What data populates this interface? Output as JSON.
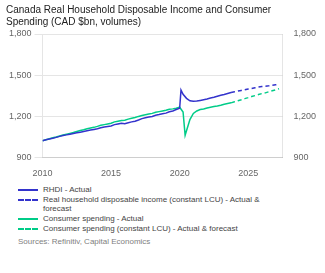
{
  "chart_data": {
    "type": "line",
    "title": "Canada Real Household Disposable Income and Consumer\nSpending (CAD $bn, volumes)",
    "annotations": [
      "Sources: Refinitiv, Capital Economics"
    ],
    "xlim": [
      2010,
      2027.5
    ],
    "xticks": [
      2010,
      2015,
      2020,
      2025
    ],
    "ylim": [
      900,
      1800
    ],
    "yticks": [
      900,
      {
        "value": 1200,
        "label": "1,200"
      },
      {
        "value": 1500,
        "label": "1,500"
      },
      {
        "value": 1800,
        "label": "1,800"
      }
    ],
    "y2lim": [
      900,
      1800
    ],
    "y2ticks": [
      900,
      {
        "value": 1200,
        "label": "1,200"
      },
      {
        "value": 1500,
        "label": "1,500"
      },
      {
        "value": 1800,
        "label": "1,800"
      }
    ],
    "grid": "y",
    "legend": "bottom",
    "series": [
      {
        "name": "RHDI - Actual",
        "color": "#3333cc",
        "line_style": "solid",
        "x": [
          2010.0,
          2010.25,
          2010.5,
          2010.75,
          2011.0,
          2011.25,
          2011.5,
          2011.75,
          2012.0,
          2012.25,
          2012.5,
          2012.75,
          2013.0,
          2013.25,
          2013.5,
          2013.75,
          2014.0,
          2014.25,
          2014.5,
          2014.75,
          2015.0,
          2015.25,
          2015.5,
          2015.75,
          2016.0,
          2016.25,
          2016.5,
          2016.75,
          2017.0,
          2017.25,
          2017.5,
          2017.75,
          2018.0,
          2018.25,
          2018.5,
          2018.75,
          2019.0,
          2019.25,
          2019.5,
          2019.75,
          2020.0,
          2020.1,
          2020.25,
          2020.5,
          2020.75,
          2021.0,
          2021.25,
          2021.5,
          2021.75,
          2022.0,
          2022.25,
          2022.5,
          2022.75,
          2023.0,
          2023.25,
          2023.5,
          2023.75
        ],
        "values": [
          1020,
          1028,
          1033,
          1038,
          1045,
          1052,
          1058,
          1063,
          1068,
          1073,
          1078,
          1083,
          1088,
          1093,
          1098,
          1103,
          1108,
          1115,
          1120,
          1125,
          1128,
          1138,
          1143,
          1148,
          1145,
          1152,
          1158,
          1163,
          1172,
          1182,
          1188,
          1193,
          1198,
          1207,
          1212,
          1218,
          1222,
          1232,
          1238,
          1248,
          1258,
          1390,
          1360,
          1330,
          1312,
          1308,
          1310,
          1315,
          1320,
          1325,
          1332,
          1338,
          1345,
          1352,
          1358,
          1365,
          1372
        ]
      },
      {
        "name": "Real household disposable income (constant LCU) - Actual &\nforecast",
        "color": "#3333cc",
        "line_style": "dashed",
        "x": [
          2023.75,
          2024.0,
          2024.25,
          2024.5,
          2024.75,
          2025.0,
          2025.25,
          2025.5,
          2025.75,
          2026.0,
          2026.25,
          2026.5,
          2026.75,
          2027.0,
          2027.25
        ],
        "values": [
          1372,
          1378,
          1383,
          1388,
          1393,
          1398,
          1402,
          1407,
          1412,
          1416,
          1419,
          1422,
          1426,
          1429,
          1432
        ]
      },
      {
        "name": "Consumer spending - Actual",
        "color": "#00cc88",
        "line_style": "solid",
        "x": [
          2010.0,
          2010.25,
          2010.5,
          2010.75,
          2011.0,
          2011.25,
          2011.5,
          2011.75,
          2012.0,
          2012.25,
          2012.5,
          2012.75,
          2013.0,
          2013.25,
          2013.5,
          2013.75,
          2014.0,
          2014.25,
          2014.5,
          2014.75,
          2015.0,
          2015.25,
          2015.5,
          2015.75,
          2016.0,
          2016.25,
          2016.5,
          2016.75,
          2017.0,
          2017.25,
          2017.5,
          2017.75,
          2018.0,
          2018.25,
          2018.5,
          2018.75,
          2019.0,
          2019.25,
          2019.5,
          2019.75,
          2020.0,
          2020.25,
          2020.4,
          2020.75,
          2021.0,
          2021.25,
          2021.5,
          2021.75,
          2022.0,
          2022.25,
          2022.5,
          2022.75,
          2023.0,
          2023.25,
          2023.5,
          2023.75
        ],
        "values": [
          1020,
          1028,
          1035,
          1042,
          1048,
          1055,
          1062,
          1068,
          1074,
          1080,
          1088,
          1095,
          1100,
          1108,
          1113,
          1118,
          1125,
          1133,
          1138,
          1143,
          1148,
          1158,
          1163,
          1168,
          1170,
          1178,
          1185,
          1190,
          1198,
          1205,
          1210,
          1215,
          1220,
          1228,
          1233,
          1238,
          1243,
          1250,
          1253,
          1258,
          1265,
          1230,
          1060,
          1175,
          1220,
          1238,
          1248,
          1252,
          1260,
          1265,
          1270,
          1274,
          1280,
          1287,
          1292,
          1297
        ]
      },
      {
        "name": "Consumer spending (constant LCU) - Actual & forecast",
        "color": "#00cc88",
        "line_style": "dashed",
        "x": [
          2023.75,
          2024.0,
          2024.25,
          2024.5,
          2024.75,
          2025.0,
          2025.25,
          2025.5,
          2025.75,
          2026.0,
          2026.25,
          2026.5,
          2026.75,
          2027.0,
          2027.25
        ],
        "values": [
          1297,
          1305,
          1313,
          1320,
          1328,
          1335,
          1343,
          1350,
          1358,
          1365,
          1370,
          1378,
          1385,
          1392,
          1400
        ]
      }
    ]
  }
}
